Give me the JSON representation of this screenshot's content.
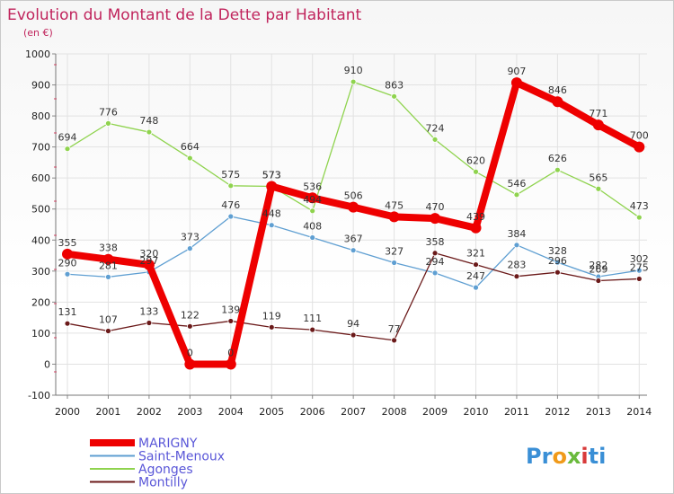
{
  "chart_data": {
    "type": "line",
    "title": "Evolution du Montant de la Dette par Habitant",
    "subtitle": "(en €)",
    "xlabel": "",
    "ylabel": "",
    "ylim": [
      -100,
      1000
    ],
    "yticks": [
      -100,
      0,
      100,
      200,
      300,
      400,
      500,
      600,
      700,
      800,
      900,
      1000
    ],
    "categories": [
      "2000",
      "2001",
      "2002",
      "2003",
      "2004",
      "2005",
      "2006",
      "2007",
      "2008",
      "2009",
      "2010",
      "2011",
      "2012",
      "2013",
      "2014"
    ],
    "grid": true,
    "legend_position": "bottom-left",
    "series": [
      {
        "name": "MARIGNY",
        "color": "#ee0000",
        "values": [
          355,
          338,
          320,
          0,
          0,
          573,
          536,
          506,
          475,
          470,
          439,
          907,
          846,
          771,
          700
        ]
      },
      {
        "name": "Saint-Menoux",
        "color": "#5f9fd2",
        "values": [
          290,
          281,
          297,
          373,
          476,
          448,
          408,
          367,
          327,
          294,
          247,
          384,
          328,
          282,
          302
        ]
      },
      {
        "name": "Agonges",
        "color": "#8fd34e",
        "values": [
          694,
          776,
          748,
          664,
          575,
          573,
          494,
          910,
          863,
          724,
          620,
          546,
          626,
          565,
          473
        ]
      },
      {
        "name": "Montilly",
        "color": "#6b1a1a",
        "values": [
          131,
          107,
          133,
          122,
          139,
          119,
          111,
          94,
          77,
          358,
          321,
          283,
          296,
          269,
          275
        ]
      }
    ]
  },
  "logo": {
    "text": "Proxiti"
  }
}
